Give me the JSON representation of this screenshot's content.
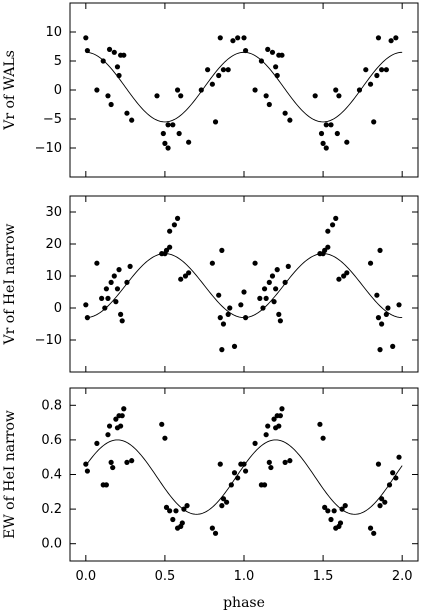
{
  "chart_data": [
    {
      "type": "scatter",
      "ylabel": "Vr of WALs",
      "xlim": [
        -0.1,
        2.1
      ],
      "ylim": [
        -15,
        15
      ],
      "xticks": [
        0.0,
        0.5,
        1.0,
        1.5,
        2.0
      ],
      "xtick_labels": [],
      "yticks": [
        -10,
        -5,
        0,
        5,
        10
      ],
      "ytick_labels": [
        "−10",
        "−5",
        "0",
        "5",
        "10"
      ],
      "model_curve": {
        "mean": 0.5,
        "amplitude": 6.0,
        "peak_phase": 0.0
      },
      "points": [
        [
          0.0,
          9.0
        ],
        [
          0.01,
          6.8
        ],
        [
          0.07,
          0.0
        ],
        [
          0.11,
          5.0
        ],
        [
          0.14,
          -1.0
        ],
        [
          0.15,
          7.0
        ],
        [
          0.16,
          -2.5
        ],
        [
          0.18,
          6.5
        ],
        [
          0.2,
          4.0
        ],
        [
          0.21,
          2.5
        ],
        [
          0.22,
          6.0
        ],
        [
          0.24,
          6.0
        ],
        [
          0.26,
          -4.0
        ],
        [
          0.29,
          -5.2
        ],
        [
          0.45,
          -1.0
        ],
        [
          0.49,
          -7.5
        ],
        [
          0.5,
          -9.2
        ],
        [
          0.52,
          -6.0
        ],
        [
          0.52,
          -10.0
        ],
        [
          0.55,
          -6.0
        ],
        [
          0.58,
          0.0
        ],
        [
          0.59,
          -7.5
        ],
        [
          0.6,
          -1.0
        ],
        [
          0.65,
          -9.0
        ],
        [
          0.73,
          0.0
        ],
        [
          0.77,
          3.5
        ],
        [
          0.8,
          1.0
        ],
        [
          0.82,
          -5.5
        ],
        [
          0.84,
          2.5
        ],
        [
          0.85,
          9.0
        ],
        [
          0.87,
          3.5
        ],
        [
          0.9,
          3.5
        ],
        [
          0.93,
          8.5
        ],
        [
          0.96,
          9.0
        ],
        [
          1.0,
          9.0
        ],
        [
          1.01,
          6.8
        ],
        [
          1.07,
          0.0
        ],
        [
          1.11,
          5.0
        ],
        [
          1.14,
          -1.0
        ],
        [
          1.15,
          7.0
        ],
        [
          1.16,
          -2.5
        ],
        [
          1.18,
          6.5
        ],
        [
          1.2,
          4.0
        ],
        [
          1.21,
          2.5
        ],
        [
          1.22,
          6.0
        ],
        [
          1.24,
          6.0
        ],
        [
          1.26,
          -4.0
        ],
        [
          1.29,
          -5.2
        ],
        [
          1.45,
          -1.0
        ],
        [
          1.49,
          -7.5
        ],
        [
          1.5,
          -9.2
        ],
        [
          1.52,
          -6.0
        ],
        [
          1.52,
          -10.0
        ],
        [
          1.55,
          -6.0
        ],
        [
          1.58,
          0.0
        ],
        [
          1.59,
          -7.5
        ],
        [
          1.6,
          -1.0
        ],
        [
          1.65,
          -9.0
        ],
        [
          1.73,
          0.0
        ],
        [
          1.77,
          3.5
        ],
        [
          1.8,
          1.0
        ],
        [
          1.82,
          -5.5
        ],
        [
          1.84,
          2.5
        ],
        [
          1.85,
          9.0
        ],
        [
          1.87,
          3.5
        ],
        [
          1.9,
          3.5
        ],
        [
          1.93,
          8.5
        ],
        [
          1.96,
          9.0
        ]
      ]
    },
    {
      "type": "scatter",
      "ylabel": "Vr of HeI narrow",
      "xlim": [
        -0.1,
        2.1
      ],
      "ylim": [
        -20,
        35
      ],
      "xticks": [
        0.0,
        0.5,
        1.0,
        1.5,
        2.0
      ],
      "xtick_labels": [],
      "yticks": [
        -10,
        0,
        10,
        20,
        30
      ],
      "ytick_labels": [
        "−10",
        "0",
        "10",
        "20",
        "30"
      ],
      "model_curve": {
        "mean": 7.0,
        "amplitude": 10.0,
        "peak_phase": 0.5
      },
      "points": [
        [
          0.0,
          1.0
        ],
        [
          0.01,
          -3.0
        ],
        [
          0.07,
          14.0
        ],
        [
          0.1,
          3.0
        ],
        [
          0.12,
          0.0
        ],
        [
          0.13,
          6.0
        ],
        [
          0.14,
          3.0
        ],
        [
          0.16,
          8.0
        ],
        [
          0.18,
          10.0
        ],
        [
          0.19,
          2.0
        ],
        [
          0.2,
          6.0
        ],
        [
          0.21,
          12.0
        ],
        [
          0.22,
          -2.0
        ],
        [
          0.23,
          -4.0
        ],
        [
          0.26,
          8.0
        ],
        [
          0.28,
          13.0
        ],
        [
          0.48,
          17.0
        ],
        [
          0.5,
          17.0
        ],
        [
          0.51,
          18.0
        ],
        [
          0.53,
          19.0
        ],
        [
          0.53,
          24.0
        ],
        [
          0.56,
          26.0
        ],
        [
          0.58,
          28.0
        ],
        [
          0.6,
          9.0
        ],
        [
          0.63,
          10.0
        ],
        [
          0.65,
          11.0
        ],
        [
          0.8,
          14.0
        ],
        [
          0.84,
          4.0
        ],
        [
          0.85,
          -3.0
        ],
        [
          0.86,
          -13.0
        ],
        [
          0.86,
          18.0
        ],
        [
          0.87,
          -5.0
        ],
        [
          0.9,
          -2.0
        ],
        [
          0.91,
          0.0
        ],
        [
          0.94,
          -12.0
        ],
        [
          0.98,
          1.0
        ],
        [
          1.0,
          5.0
        ],
        [
          1.01,
          -3.0
        ],
        [
          1.07,
          14.0
        ],
        [
          1.1,
          3.0
        ],
        [
          1.12,
          0.0
        ],
        [
          1.13,
          6.0
        ],
        [
          1.14,
          3.0
        ],
        [
          1.16,
          8.0
        ],
        [
          1.18,
          10.0
        ],
        [
          1.19,
          2.0
        ],
        [
          1.2,
          6.0
        ],
        [
          1.21,
          12.0
        ],
        [
          1.22,
          -2.0
        ],
        [
          1.23,
          -4.0
        ],
        [
          1.26,
          8.0
        ],
        [
          1.28,
          13.0
        ],
        [
          1.48,
          17.0
        ],
        [
          1.5,
          17.0
        ],
        [
          1.51,
          18.0
        ],
        [
          1.53,
          19.0
        ],
        [
          1.53,
          24.0
        ],
        [
          1.56,
          26.0
        ],
        [
          1.58,
          28.0
        ],
        [
          1.6,
          9.0
        ],
        [
          1.63,
          10.0
        ],
        [
          1.65,
          11.0
        ],
        [
          1.8,
          14.0
        ],
        [
          1.84,
          4.0
        ],
        [
          1.85,
          -3.0
        ],
        [
          1.86,
          -13.0
        ],
        [
          1.86,
          18.0
        ],
        [
          1.87,
          -5.0
        ],
        [
          1.9,
          -2.0
        ],
        [
          1.91,
          0.0
        ],
        [
          1.94,
          -12.0
        ],
        [
          1.98,
          1.0
        ]
      ]
    },
    {
      "type": "scatter",
      "xlabel": "phase",
      "ylabel": "EW of HeI narrow",
      "xlim": [
        -0.1,
        2.1
      ],
      "ylim": [
        -0.1,
        0.9
      ],
      "xticks": [
        0.0,
        0.5,
        1.0,
        1.5,
        2.0
      ],
      "xtick_labels": [
        "0.0",
        "0.5",
        "1.0",
        "1.5",
        "2.0"
      ],
      "yticks": [
        0.0,
        0.2,
        0.4,
        0.6,
        0.8
      ],
      "ytick_labels": [
        "0.0",
        "0.2",
        "0.4",
        "0.6",
        "0.8"
      ],
      "model_curve": {
        "mean": 0.385,
        "amplitude": 0.215,
        "peak_phase": 0.2
      },
      "points": [
        [
          0.0,
          0.46
        ],
        [
          0.01,
          0.42
        ],
        [
          0.07,
          0.58
        ],
        [
          0.11,
          0.34
        ],
        [
          0.13,
          0.34
        ],
        [
          0.14,
          0.63
        ],
        [
          0.15,
          0.68
        ],
        [
          0.16,
          0.47
        ],
        [
          0.17,
          0.44
        ],
        [
          0.19,
          0.72
        ],
        [
          0.2,
          0.67
        ],
        [
          0.21,
          0.74
        ],
        [
          0.22,
          0.68
        ],
        [
          0.23,
          0.74
        ],
        [
          0.24,
          0.78
        ],
        [
          0.26,
          0.47
        ],
        [
          0.29,
          0.48
        ],
        [
          0.48,
          0.69
        ],
        [
          0.5,
          0.61
        ],
        [
          0.51,
          0.21
        ],
        [
          0.53,
          0.19
        ],
        [
          0.55,
          0.14
        ],
        [
          0.57,
          0.19
        ],
        [
          0.58,
          0.09
        ],
        [
          0.6,
          0.1
        ],
        [
          0.61,
          0.12
        ],
        [
          0.62,
          0.2
        ],
        [
          0.64,
          0.22
        ],
        [
          0.8,
          0.09
        ],
        [
          0.82,
          0.06
        ],
        [
          0.85,
          0.46
        ],
        [
          0.86,
          0.22
        ],
        [
          0.87,
          0.26
        ],
        [
          0.89,
          0.24
        ],
        [
          0.92,
          0.34
        ],
        [
          0.94,
          0.41
        ],
        [
          0.96,
          0.38
        ],
        [
          0.98,
          0.46
        ],
        [
          1.0,
          0.46
        ],
        [
          1.01,
          0.42
        ],
        [
          1.07,
          0.58
        ],
        [
          1.11,
          0.34
        ],
        [
          1.13,
          0.34
        ],
        [
          1.14,
          0.63
        ],
        [
          1.15,
          0.68
        ],
        [
          1.16,
          0.47
        ],
        [
          1.17,
          0.44
        ],
        [
          1.19,
          0.72
        ],
        [
          1.2,
          0.67
        ],
        [
          1.21,
          0.74
        ],
        [
          1.22,
          0.68
        ],
        [
          1.23,
          0.74
        ],
        [
          1.24,
          0.78
        ],
        [
          1.26,
          0.47
        ],
        [
          1.29,
          0.48
        ],
        [
          1.48,
          0.69
        ],
        [
          1.5,
          0.61
        ],
        [
          1.51,
          0.21
        ],
        [
          1.53,
          0.19
        ],
        [
          1.55,
          0.14
        ],
        [
          1.57,
          0.19
        ],
        [
          1.58,
          0.09
        ],
        [
          1.6,
          0.1
        ],
        [
          1.61,
          0.12
        ],
        [
          1.62,
          0.2
        ],
        [
          1.64,
          0.22
        ],
        [
          1.8,
          0.09
        ],
        [
          1.82,
          0.06
        ],
        [
          1.85,
          0.46
        ],
        [
          1.86,
          0.22
        ],
        [
          1.87,
          0.26
        ],
        [
          1.89,
          0.24
        ],
        [
          1.92,
          0.34
        ],
        [
          1.94,
          0.41
        ],
        [
          1.96,
          0.38
        ],
        [
          1.98,
          0.5
        ]
      ]
    }
  ]
}
